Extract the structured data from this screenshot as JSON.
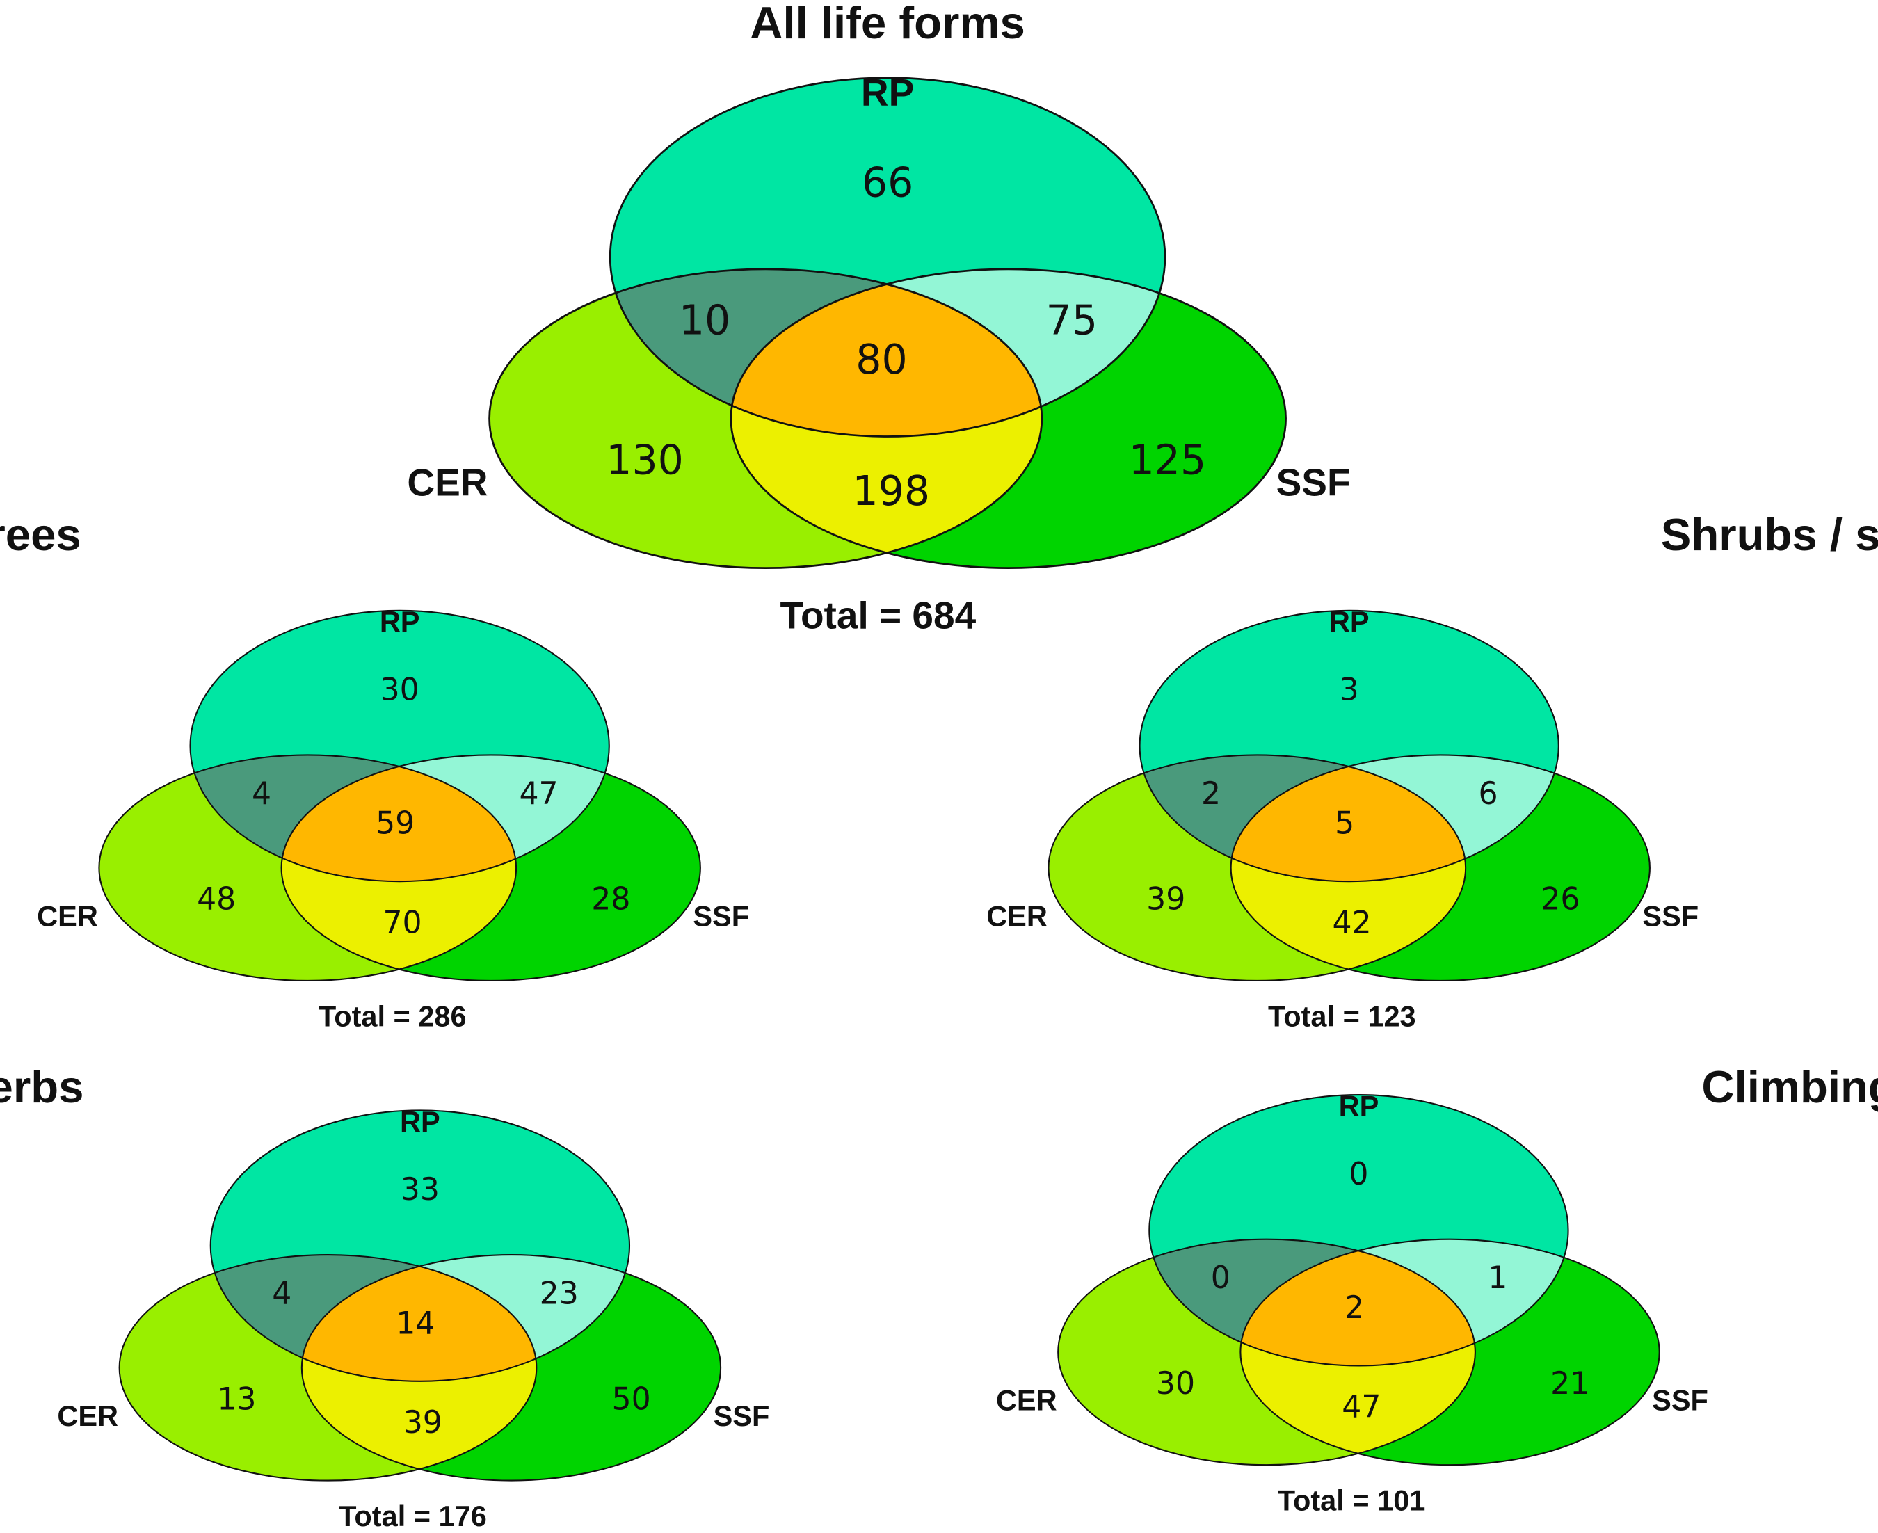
{
  "panels": [
    {
      "title": "All life forms",
      "sets": [
        "RP",
        "CER",
        "SSF"
      ],
      "regions": {
        "rp_only": 66,
        "rp_cer": 10,
        "rp_ssf": 75,
        "all": 80,
        "cer_only": 130,
        "cer_ssf": 198,
        "ssf_only": 125
      },
      "total": "Total = 684"
    },
    {
      "title": "Trees",
      "sets": [
        "RP",
        "CER",
        "SSF"
      ],
      "regions": {
        "rp_only": 30,
        "rp_cer": 4,
        "rp_ssf": 47,
        "all": 59,
        "cer_only": 48,
        "cer_ssf": 70,
        "ssf_only": 28
      },
      "total": "Total = 286"
    },
    {
      "title": "Shrubs / subshrubs",
      "sets": [
        "RP",
        "CER",
        "SSF"
      ],
      "regions": {
        "rp_only": 3,
        "rp_cer": 2,
        "rp_ssf": 6,
        "all": 5,
        "cer_only": 39,
        "cer_ssf": 42,
        "ssf_only": 26
      },
      "total": "Total = 123"
    },
    {
      "title": "Herbs",
      "sets": [
        "RP",
        "CER",
        "SSF"
      ],
      "regions": {
        "rp_only": 33,
        "rp_cer": 4,
        "rp_ssf": 23,
        "all": 14,
        "cer_only": 13,
        "cer_ssf": 39,
        "ssf_only": 50
      },
      "total": "Total = 176"
    },
    {
      "title": "Climbing",
      "sets": [
        "RP",
        "CER",
        "SSF"
      ],
      "regions": {
        "rp_only": 0,
        "rp_cer": 0,
        "rp_ssf": 1,
        "all": 2,
        "cer_only": 30,
        "cer_ssf": 47,
        "ssf_only": 21
      },
      "total": "Total = 101"
    }
  ]
}
